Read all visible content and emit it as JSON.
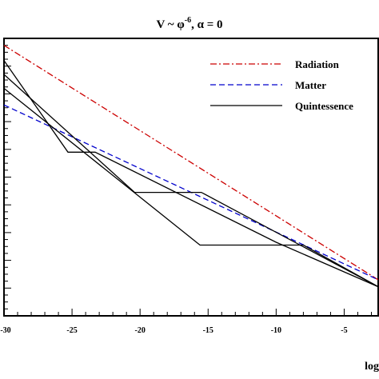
{
  "chart_data": {
    "type": "line",
    "title": {
      "main": "V ~ φ",
      "superscript": "-6",
      "rest": ", α = 0"
    },
    "xlabel": "log",
    "ylabel": "",
    "xlim": [
      -30,
      -2.5
    ],
    "ylim": [
      0,
      1
    ],
    "x_ticks": [
      -30,
      -25,
      -20,
      -15,
      -10,
      -5
    ],
    "x_tick_labels": [
      "-30",
      "-25",
      "-20",
      "-15",
      "-10",
      "-5"
    ],
    "grid": false,
    "legend_position": "top-right",
    "series": [
      {
        "name": "Radiation",
        "style": "dash-dot",
        "color": "#cc0000",
        "points": [
          [
            -30,
            0.975
          ],
          [
            -2.5,
            0.13
          ]
        ]
      },
      {
        "name": "Matter",
        "style": "dashed",
        "color": "#0000cc",
        "points": [
          [
            -30,
            0.76
          ],
          [
            -2.5,
            0.13
          ]
        ]
      },
      {
        "name": "Quintessence",
        "style": "solid",
        "color": "#000000",
        "points": [
          [
            -30,
            0.92
          ],
          [
            -25.3,
            0.59
          ],
          [
            -23.3,
            0.59
          ],
          [
            -10,
            0.265
          ],
          [
            -2.5,
            0.105
          ]
        ]
      },
      {
        "name": "",
        "style": "solid",
        "color": "#000000",
        "points": [
          [
            -30,
            0.87
          ],
          [
            -20.4,
            0.445
          ],
          [
            -15.5,
            0.445
          ],
          [
            -2.5,
            0.105
          ]
        ]
      },
      {
        "name": "",
        "style": "solid",
        "color": "#000000",
        "points": [
          [
            -30,
            0.82
          ],
          [
            -15.6,
            0.255
          ],
          [
            -8,
            0.255
          ],
          [
            -2.5,
            0.105
          ]
        ]
      }
    ]
  }
}
